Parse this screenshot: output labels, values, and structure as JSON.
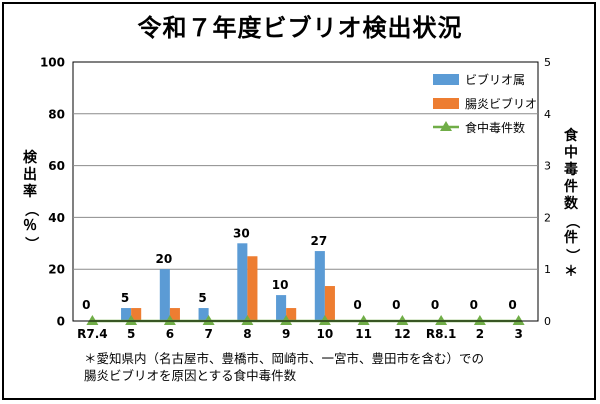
{
  "title": "令和７年度ビブリオ検出状況",
  "chart_data": {
    "type": "bar",
    "categories": [
      "R7.4",
      "5",
      "6",
      "7",
      "8",
      "9",
      "10",
      "11",
      "12",
      "R8.1",
      "2",
      "3"
    ],
    "series": [
      {
        "name": "ビブリオ属",
        "values": [
          0,
          5,
          20,
          5,
          30,
          10,
          27,
          0,
          0,
          0,
          0,
          0
        ],
        "color": "#5b9bd5",
        "axis": "left"
      },
      {
        "name": "腸炎ビブリオ",
        "values": [
          0,
          5,
          5,
          0,
          25,
          5,
          13.5,
          0,
          0,
          0,
          0,
          0
        ],
        "color": "#ed7d31",
        "axis": "left"
      },
      {
        "name": "食中毒件数",
        "values": [
          0,
          0,
          0,
          0,
          0,
          0,
          0,
          0,
          0,
          0,
          0,
          0
        ],
        "color": "#70ad47",
        "axis": "right",
        "kind": "line-triangle"
      }
    ],
    "data_labels": [
      "0",
      "5",
      "20",
      "5",
      "30",
      "10",
      "27",
      "0",
      "0",
      "0",
      "0",
      "0"
    ],
    "ylim": [
      0,
      100
    ],
    "yticks": [
      "0",
      "20",
      "40",
      "60",
      "80",
      "100"
    ],
    "ylim_right": [
      0,
      5
    ],
    "yticks_right": [
      "0",
      "1",
      "2",
      "3",
      "4",
      "5"
    ],
    "ylabel": "検出率（％）",
    "ylabel_right": "食中毒件数（件）＊",
    "grid": true,
    "legend_position": "top-right"
  },
  "footnote": {
    "line1": "＊愛知県内（名古屋市、豊橋市、岡崎市、一宮市、豊田市を含む）での",
    "line2": "腸炎ビブリオを原因とする食中毒件数"
  }
}
